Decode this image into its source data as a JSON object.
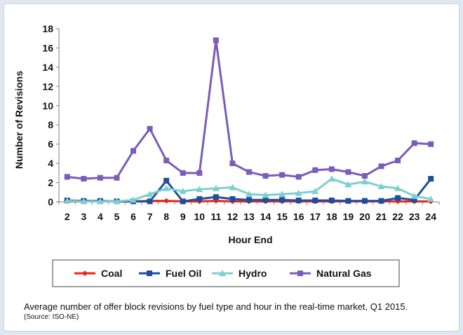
{
  "chart_data": {
    "type": "line",
    "title": "",
    "xlabel": "Hour End",
    "ylabel": "Number of Revisions",
    "x": [
      2,
      3,
      4,
      5,
      6,
      7,
      8,
      9,
      10,
      11,
      12,
      13,
      14,
      15,
      16,
      17,
      18,
      19,
      20,
      21,
      22,
      23,
      24
    ],
    "ylim": [
      0,
      18
    ],
    "yticks": [
      0,
      2,
      4,
      6,
      8,
      10,
      12,
      14,
      16,
      18
    ],
    "grid": false,
    "legend": "bottom",
    "series": [
      {
        "name": "Coal",
        "color": "#e8231d",
        "marker": "diamond",
        "values": [
          0.05,
          0.05,
          0.05,
          0.05,
          0.05,
          0.1,
          0.1,
          0.05,
          0.05,
          0.1,
          0.05,
          0.05,
          0.05,
          0.05,
          0.05,
          0.05,
          0.05,
          0.05,
          0.05,
          0.05,
          0.05,
          0.05,
          0.05
        ]
      },
      {
        "name": "Fuel Oil",
        "color": "#1f4e9c",
        "marker": "square",
        "values": [
          0.15,
          0.1,
          0.1,
          0.05,
          0.05,
          0.05,
          2.2,
          0.05,
          0.3,
          0.5,
          0.3,
          0.2,
          0.2,
          0.2,
          0.15,
          0.15,
          0.15,
          0.1,
          0.1,
          0.1,
          0.4,
          0.2,
          2.4
        ]
      },
      {
        "name": "Hydro",
        "color": "#7fcfcf",
        "marker": "triangle",
        "values": [
          0.1,
          0.05,
          0.05,
          0.05,
          0.2,
          0.8,
          1.4,
          1.1,
          1.3,
          1.4,
          1.5,
          0.8,
          0.7,
          0.8,
          0.9,
          1.1,
          2.4,
          1.8,
          2.1,
          1.6,
          1.4,
          0.6,
          0.3
        ]
      },
      {
        "name": "Natural Gas",
        "color": "#7b5cb8",
        "marker": "square",
        "values": [
          2.6,
          2.4,
          2.5,
          2.5,
          5.3,
          7.6,
          4.3,
          3.0,
          3.0,
          16.8,
          4.0,
          3.1,
          2.7,
          2.8,
          2.6,
          3.3,
          3.4,
          3.1,
          2.7,
          3.7,
          4.3,
          6.1,
          6.0
        ]
      }
    ]
  },
  "caption": {
    "text": "Average number of offer block revisions by fuel type and hour in the real-time market, Q1 2015.",
    "source": "(Source: ISO-NE)"
  }
}
